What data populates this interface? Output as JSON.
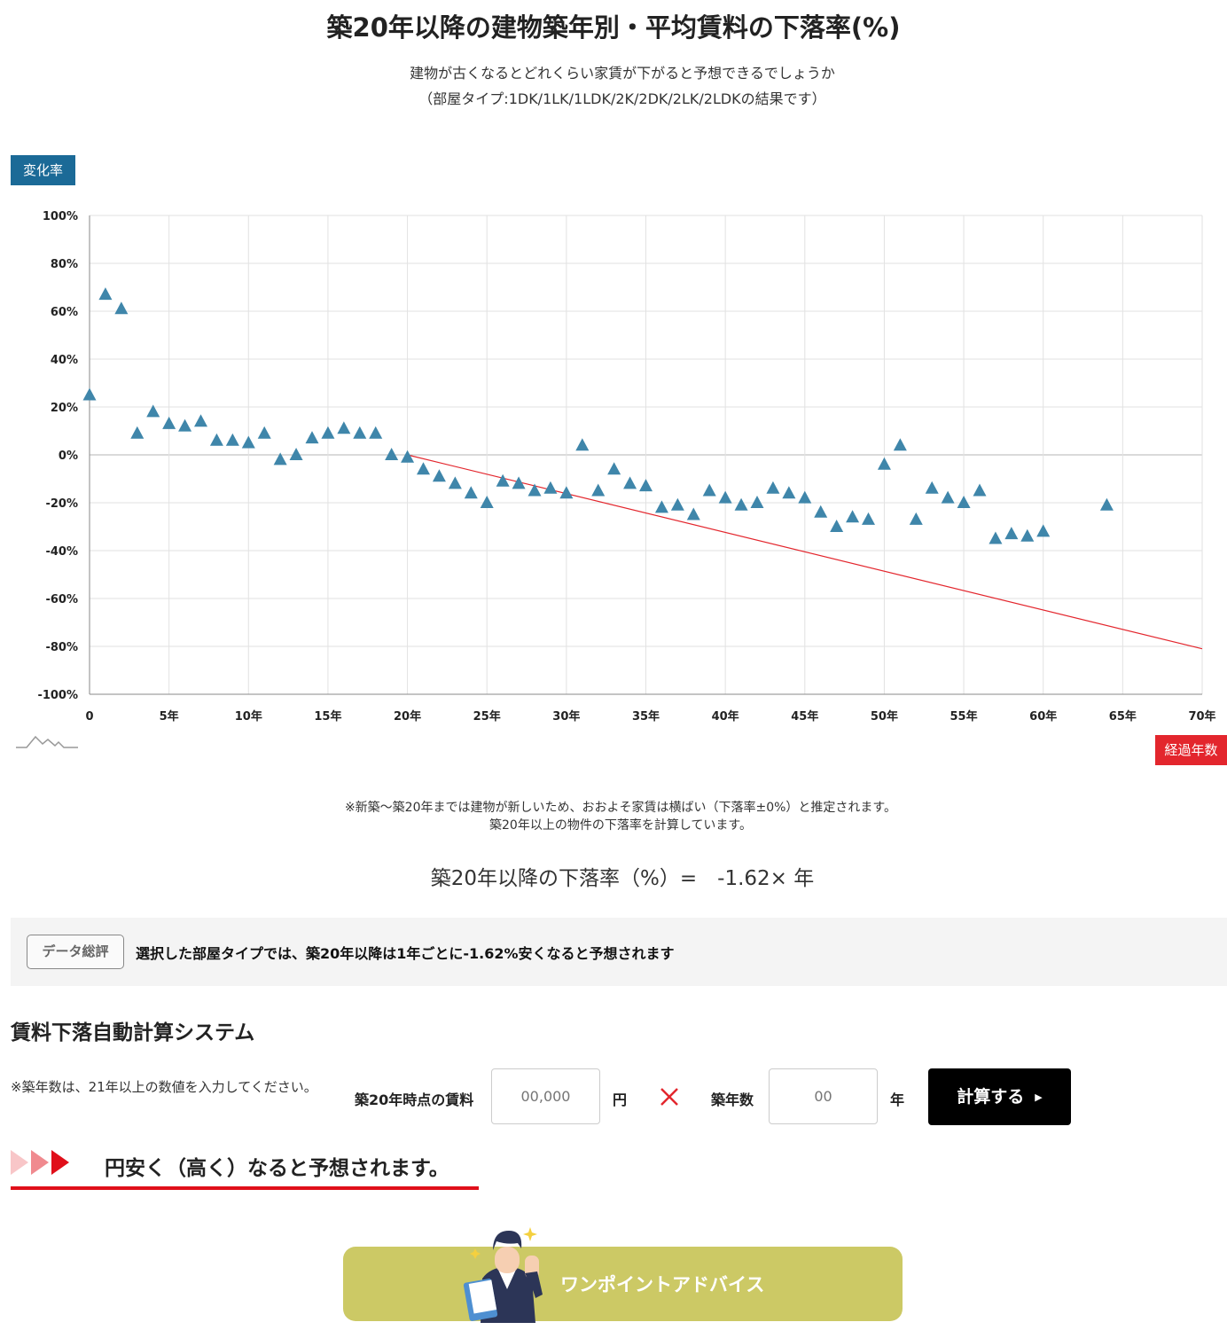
{
  "page": {
    "title": "築20年以降の建物築年別・平均賃料の下落率(%)",
    "subtitle_line1": "建物が古くなるとどれくらい家賃が下がると予想できるでしょうか",
    "subtitle_line2": "（部屋タイプ:1DK/1LK/1LDK/2K/2DK/2LK/2LDKの結果です）",
    "note_line1": "※新築～築20年までは建物が新しいため、おおよそ家賃は横ばい（下落率±0%）と推定されます。",
    "note_line2": "築20年以上の物件の下落率を計算しています。",
    "formula": "築20年以降の下落率（%）=　-1.62× 年"
  },
  "chart_data": {
    "type": "scatter",
    "title": "築20年以降の建物築年別・平均賃料の下落率(%)",
    "ylabel": "変化率",
    "xlabel": "経過年数",
    "xlim": [
      0,
      70
    ],
    "ylim": [
      -100,
      100
    ],
    "x_ticks": [
      0,
      5,
      10,
      15,
      20,
      25,
      30,
      35,
      40,
      45,
      50,
      55,
      60,
      65,
      70
    ],
    "x_tick_labels": [
      "0",
      "5年",
      "10年",
      "15年",
      "20年",
      "25年",
      "30年",
      "35年",
      "40年",
      "45年",
      "50年",
      "55年",
      "60年",
      "65年",
      "70年"
    ],
    "y_ticks": [
      100,
      80,
      60,
      40,
      20,
      0,
      -20,
      -40,
      -60,
      -80,
      -100
    ],
    "y_tick_labels": [
      "100%",
      "80%",
      "60%",
      "40%",
      "20%",
      "0%",
      "-20%",
      "-40%",
      "-60%",
      "-80%",
      "-100%"
    ],
    "grid": true,
    "marker": "triangle",
    "marker_color": "#3f86aa",
    "trend_color": "#e3262d",
    "series": [
      {
        "x": [
          0,
          1,
          2,
          3,
          4,
          5,
          6,
          7,
          8,
          9,
          10,
          11,
          12,
          13,
          14,
          15,
          16,
          17,
          18,
          19,
          20,
          21,
          22,
          23,
          24,
          25,
          26,
          27,
          28,
          29,
          30,
          31,
          32,
          33,
          34,
          35,
          36,
          37,
          38,
          39,
          40,
          41,
          42,
          43,
          44,
          45,
          46,
          47,
          48,
          49,
          50,
          51,
          52,
          53,
          54,
          55,
          56,
          57,
          58,
          59,
          60,
          64
        ],
        "y": [
          25,
          67,
          61,
          9,
          18,
          13,
          12,
          14,
          6,
          6,
          5,
          9,
          -2,
          0,
          7,
          9,
          11,
          9,
          9,
          0,
          -1,
          -6,
          -9,
          -12,
          -16,
          -20,
          -11,
          -12,
          -15,
          -14,
          -16,
          4,
          -15,
          -6,
          -12,
          -13,
          -22,
          -21,
          -25,
          -15,
          -18,
          -21,
          -20,
          -14,
          -16,
          -18,
          -24,
          -30,
          -26,
          -27,
          -4,
          4,
          -27,
          -14,
          -18,
          -20,
          -15,
          -35,
          -33,
          -34,
          -32,
          -21
        ]
      }
    ],
    "trendline": {
      "slope": -1.62,
      "x_start": 20,
      "x_end": 70
    }
  },
  "summary": {
    "badge": "データ総評",
    "text": "選択した部屋タイプでは、築20年以降は1年ごとに-1.62%安くなると予想されます"
  },
  "calculator": {
    "title": "賃料下落自動計算システム",
    "note": "※築年数は、21年以上の数値を入力してください。",
    "rent_label": "築20年時点の賃料",
    "rent_placeholder": "00,000",
    "rent_unit": "円",
    "age_label": "築年数",
    "age_placeholder": "00",
    "age_unit": "年",
    "button_label": "計算する",
    "button_icon": "play-triangle-icon",
    "times_icon": "times-icon",
    "times_color": "#e3262d"
  },
  "result": {
    "text": "円安く（高く）なると予想されます。"
  },
  "advice": {
    "label": "ワンポイントアドバイス",
    "bg_color": "#ccc965"
  }
}
